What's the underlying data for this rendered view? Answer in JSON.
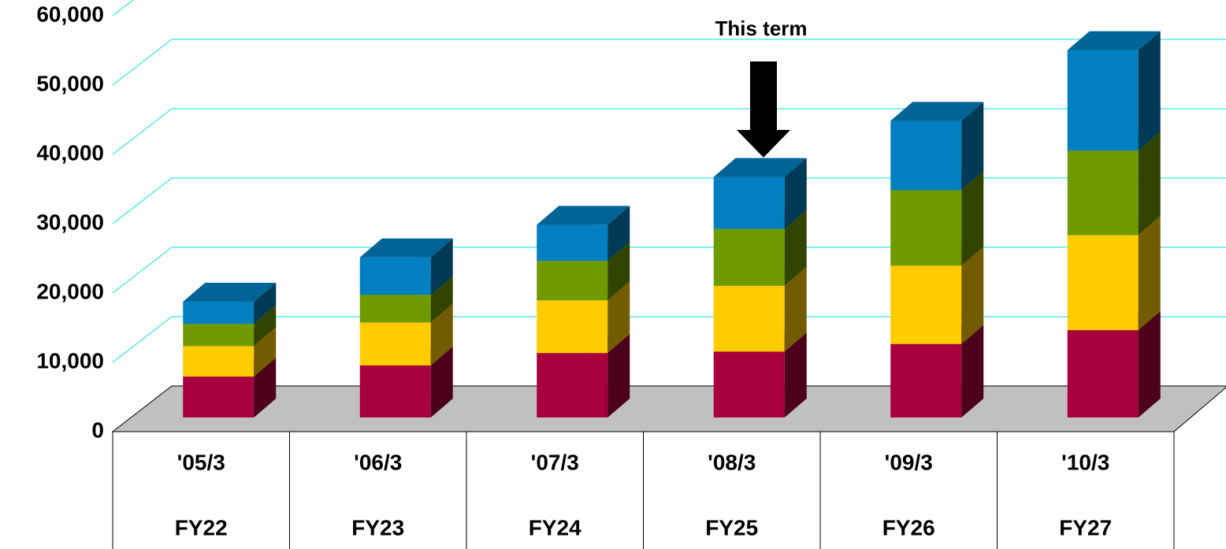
{
  "chart_data": {
    "type": "bar3d_stacked",
    "annotation": "This term",
    "categories": [
      [
        "'05/3",
        "FY22"
      ],
      [
        "'06/3",
        "FY23"
      ],
      [
        "'07/3",
        "FY24"
      ],
      [
        "'08/3",
        "FY25"
      ],
      [
        "'09/3",
        "FY26"
      ],
      [
        "'10/3",
        "FY27"
      ]
    ],
    "series": [
      {
        "color": "#a8003c",
        "values": [
          5900,
          7500,
          9300,
          9500,
          10600,
          12600
        ]
      },
      {
        "color": "#ffcc00",
        "values": [
          4400,
          6200,
          7600,
          9500,
          11300,
          13700
        ]
      },
      {
        "color": "#6f9a00",
        "values": [
          3200,
          4000,
          5700,
          8200,
          10900,
          12200
        ]
      },
      {
        "color": "#0080c0",
        "values": [
          3200,
          5400,
          5200,
          7500,
          10000,
          14500
        ]
      }
    ],
    "ylim": [
      0,
      60000
    ],
    "yticks": [
      0,
      {
        "value": 10000,
        "label": "10,000"
      },
      {
        "value": 20000,
        "label": "20,000"
      },
      {
        "value": 30000,
        "label": "30,000"
      },
      {
        "value": 40000,
        "label": "40,000"
      },
      {
        "value": 50000,
        "label": "50,000"
      },
      {
        "value": 60000,
        "label": "60,000"
      }
    ],
    "grid": true
  }
}
